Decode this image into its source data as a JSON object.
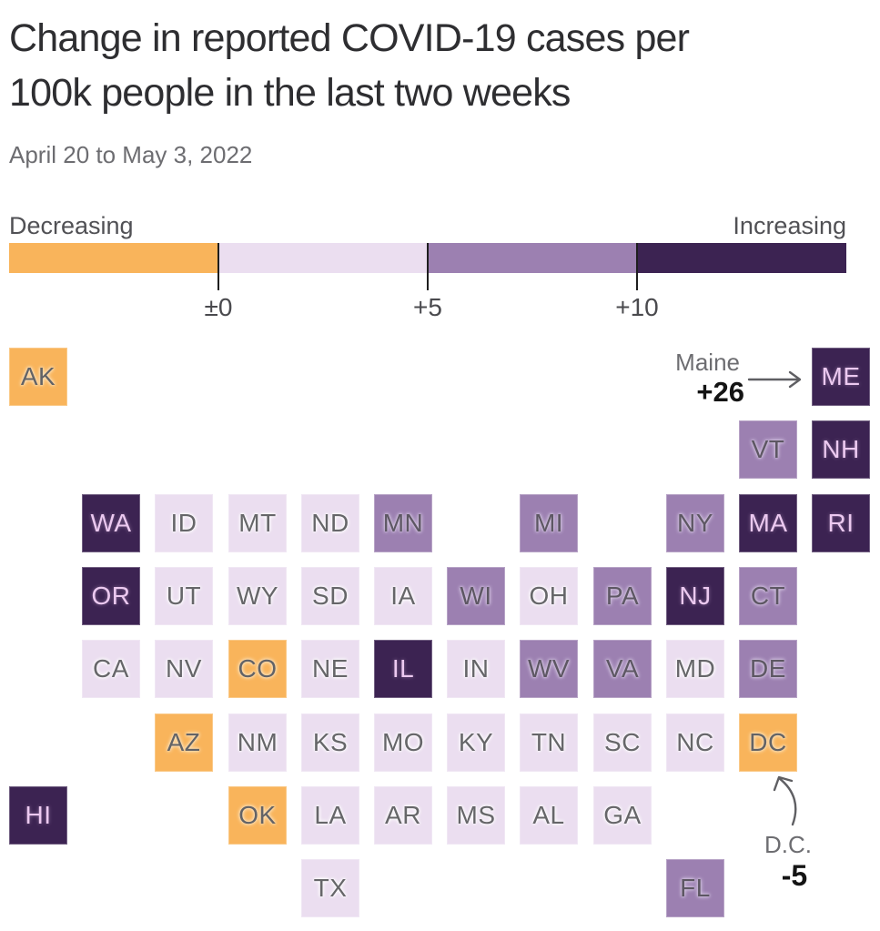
{
  "header": {
    "title_line1": "Change in reported COVID-19 cases per",
    "title_line2": "100k people in the last two weeks",
    "subtitle": "April 20 to May 3, 2022"
  },
  "legend": {
    "left_label": "Decreasing",
    "right_label": "Increasing",
    "tick_labels": [
      "±0",
      "+5",
      "+10"
    ],
    "tick_positions_pct": [
      25,
      50,
      75
    ],
    "segment_colors": [
      "#F9B45B",
      "#EBDEF0",
      "#9C80B1",
      "#3C2352"
    ],
    "segment_meanings": [
      "decreasing",
      "+0 to +5",
      "+5 to +10",
      "more than +10"
    ]
  },
  "annotations": {
    "maine": {
      "label": "Maine",
      "value": "+26",
      "target": "ME"
    },
    "dc": {
      "label": "D.C.",
      "value": "-5",
      "target": "DC"
    }
  },
  "chart_data": {
    "type": "heatmap",
    "subtype": "us-state-tile-cartogram",
    "title": "Change in reported COVID-19 cases per 100k people in the last two weeks",
    "subtitle": "April 20 to May 3, 2022",
    "unit": "change in reported cases per 100k people over two weeks",
    "color_scale": {
      "breaks": [
        "±0",
        "+5",
        "+10"
      ],
      "categories": [
        {
          "name": "decreasing",
          "range": "below 0",
          "color": "#F9B45B"
        },
        {
          "name": "low",
          "range": "0 to +5",
          "color": "#EBDEF0"
        },
        {
          "name": "mid",
          "range": "+5 to +10",
          "color": "#9C80B1"
        },
        {
          "name": "high",
          "range": "above +10",
          "color": "#3C2352"
        }
      ]
    },
    "labeled_values": [
      {
        "state": "ME",
        "value": 26
      },
      {
        "state": "DC",
        "value": -5
      }
    ],
    "states": [
      {
        "abbr": "AK",
        "row": 0,
        "col": 0,
        "category": "decreasing"
      },
      {
        "abbr": "ME",
        "row": 0,
        "col": 11,
        "category": "high"
      },
      {
        "abbr": "VT",
        "row": 1,
        "col": 10,
        "category": "mid"
      },
      {
        "abbr": "NH",
        "row": 1,
        "col": 11,
        "category": "high"
      },
      {
        "abbr": "WA",
        "row": 2,
        "col": 1,
        "category": "high"
      },
      {
        "abbr": "ID",
        "row": 2,
        "col": 2,
        "category": "low"
      },
      {
        "abbr": "MT",
        "row": 2,
        "col": 3,
        "category": "low"
      },
      {
        "abbr": "ND",
        "row": 2,
        "col": 4,
        "category": "low"
      },
      {
        "abbr": "MN",
        "row": 2,
        "col": 5,
        "category": "mid"
      },
      {
        "abbr": "MI",
        "row": 2,
        "col": 7,
        "category": "mid"
      },
      {
        "abbr": "NY",
        "row": 2,
        "col": 9,
        "category": "mid"
      },
      {
        "abbr": "MA",
        "row": 2,
        "col": 10,
        "category": "high"
      },
      {
        "abbr": "RI",
        "row": 2,
        "col": 11,
        "category": "high"
      },
      {
        "abbr": "OR",
        "row": 3,
        "col": 1,
        "category": "high"
      },
      {
        "abbr": "UT",
        "row": 3,
        "col": 2,
        "category": "low"
      },
      {
        "abbr": "WY",
        "row": 3,
        "col": 3,
        "category": "low"
      },
      {
        "abbr": "SD",
        "row": 3,
        "col": 4,
        "category": "low"
      },
      {
        "abbr": "IA",
        "row": 3,
        "col": 5,
        "category": "low"
      },
      {
        "abbr": "WI",
        "row": 3,
        "col": 6,
        "category": "mid"
      },
      {
        "abbr": "OH",
        "row": 3,
        "col": 7,
        "category": "low"
      },
      {
        "abbr": "PA",
        "row": 3,
        "col": 8,
        "category": "mid"
      },
      {
        "abbr": "NJ",
        "row": 3,
        "col": 9,
        "category": "high"
      },
      {
        "abbr": "CT",
        "row": 3,
        "col": 10,
        "category": "mid"
      },
      {
        "abbr": "CA",
        "row": 4,
        "col": 1,
        "category": "low"
      },
      {
        "abbr": "NV",
        "row": 4,
        "col": 2,
        "category": "low"
      },
      {
        "abbr": "CO",
        "row": 4,
        "col": 3,
        "category": "decreasing"
      },
      {
        "abbr": "NE",
        "row": 4,
        "col": 4,
        "category": "low"
      },
      {
        "abbr": "IL",
        "row": 4,
        "col": 5,
        "category": "high"
      },
      {
        "abbr": "IN",
        "row": 4,
        "col": 6,
        "category": "low"
      },
      {
        "abbr": "WV",
        "row": 4,
        "col": 7,
        "category": "mid"
      },
      {
        "abbr": "VA",
        "row": 4,
        "col": 8,
        "category": "mid"
      },
      {
        "abbr": "MD",
        "row": 4,
        "col": 9,
        "category": "low"
      },
      {
        "abbr": "DE",
        "row": 4,
        "col": 10,
        "category": "mid"
      },
      {
        "abbr": "AZ",
        "row": 5,
        "col": 2,
        "category": "decreasing"
      },
      {
        "abbr": "NM",
        "row": 5,
        "col": 3,
        "category": "low"
      },
      {
        "abbr": "KS",
        "row": 5,
        "col": 4,
        "category": "low"
      },
      {
        "abbr": "MO",
        "row": 5,
        "col": 5,
        "category": "low"
      },
      {
        "abbr": "KY",
        "row": 5,
        "col": 6,
        "category": "low"
      },
      {
        "abbr": "TN",
        "row": 5,
        "col": 7,
        "category": "low"
      },
      {
        "abbr": "SC",
        "row": 5,
        "col": 8,
        "category": "low"
      },
      {
        "abbr": "NC",
        "row": 5,
        "col": 9,
        "category": "low"
      },
      {
        "abbr": "DC",
        "row": 5,
        "col": 10,
        "category": "decreasing"
      },
      {
        "abbr": "HI",
        "row": 6,
        "col": 0,
        "category": "high"
      },
      {
        "abbr": "OK",
        "row": 6,
        "col": 3,
        "category": "decreasing"
      },
      {
        "abbr": "LA",
        "row": 6,
        "col": 4,
        "category": "low"
      },
      {
        "abbr": "AR",
        "row": 6,
        "col": 5,
        "category": "low"
      },
      {
        "abbr": "MS",
        "row": 6,
        "col": 6,
        "category": "low"
      },
      {
        "abbr": "AL",
        "row": 6,
        "col": 7,
        "category": "low"
      },
      {
        "abbr": "GA",
        "row": 6,
        "col": 8,
        "category": "low"
      },
      {
        "abbr": "TX",
        "row": 7,
        "col": 4,
        "category": "low"
      },
      {
        "abbr": "FL",
        "row": 7,
        "col": 9,
        "category": "mid"
      }
    ]
  }
}
